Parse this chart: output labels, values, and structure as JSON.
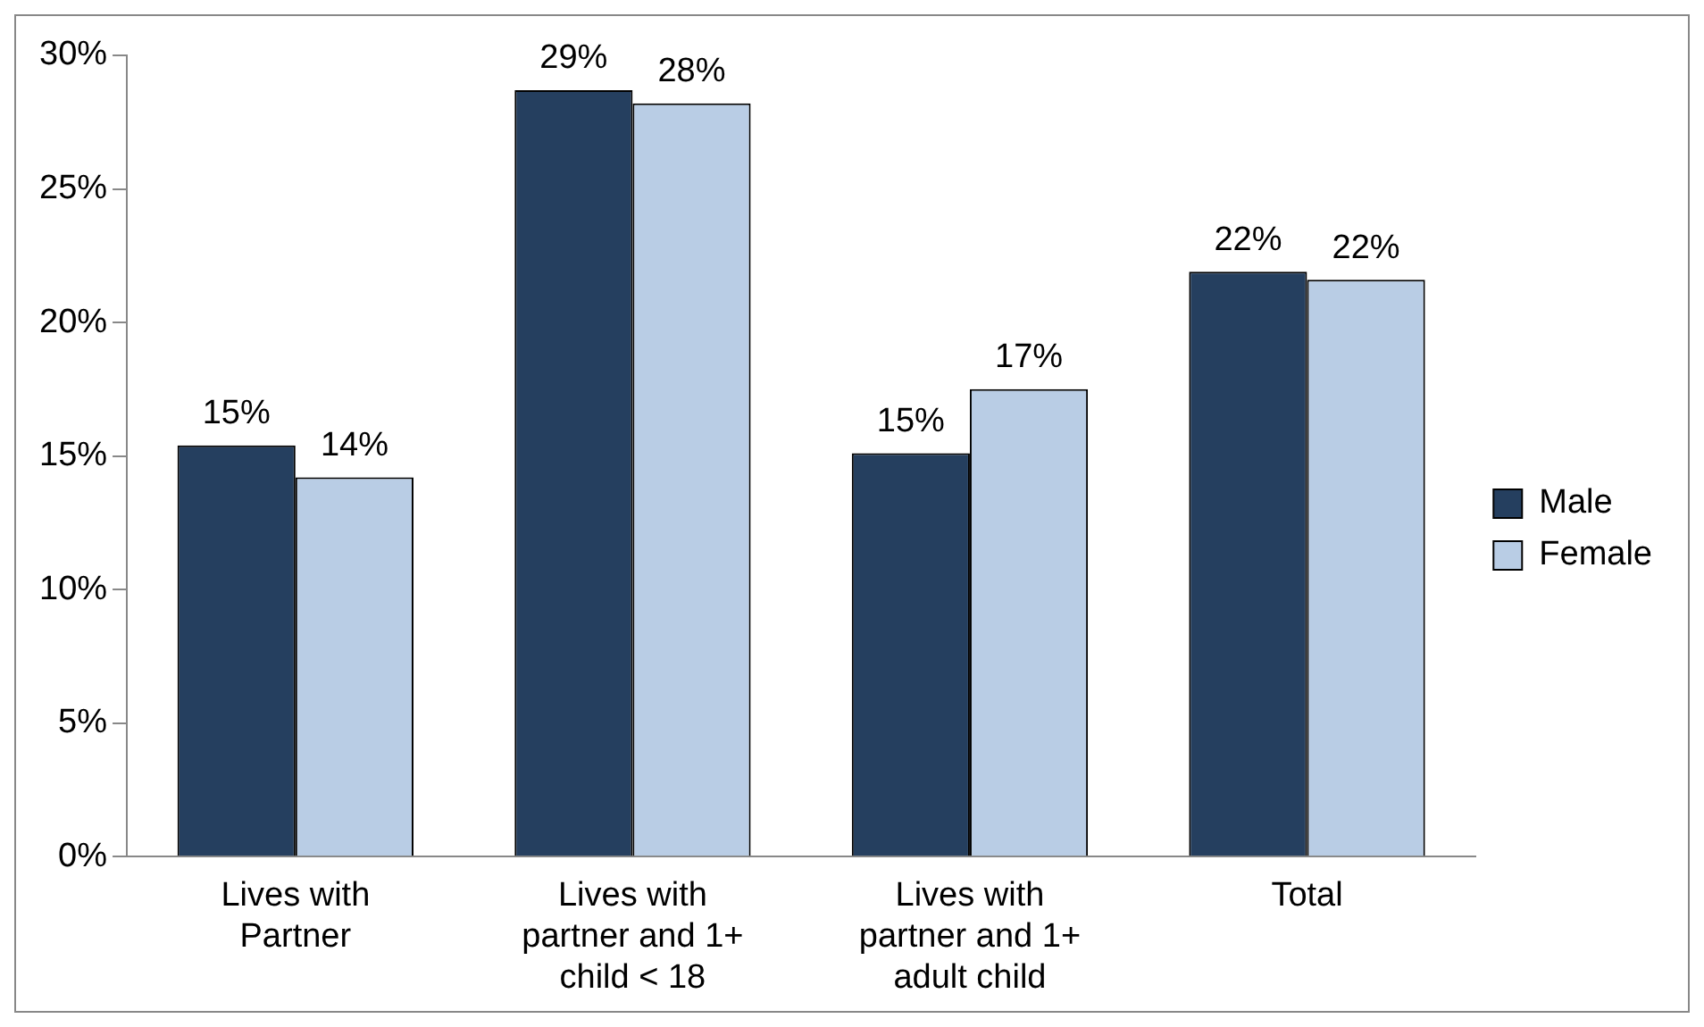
{
  "chart_data": {
    "type": "bar",
    "categories": [
      "Lives with Partner",
      "Lives with partner and 1+ child < 18",
      "Lives with partner and 1+ adult child",
      "Total"
    ],
    "series": [
      {
        "name": "Male",
        "color": "#253f5f",
        "values": [
          15.4,
          28.7,
          15.1,
          21.9
        ],
        "value_labels": [
          "15%",
          "29%",
          "15%",
          "22%"
        ]
      },
      {
        "name": "Female",
        "color": "#b9cde5",
        "values": [
          14.2,
          28.2,
          17.5,
          21.6
        ],
        "value_labels": [
          "14%",
          "28%",
          "17%",
          "22%"
        ]
      }
    ],
    "ylim": [
      0,
      30
    ],
    "yticks": [
      {
        "value": 0,
        "label": "0%"
      },
      {
        "value": 5,
        "label": "5%"
      },
      {
        "value": 10,
        "label": "10%"
      },
      {
        "value": 15,
        "label": "15%"
      },
      {
        "value": 20,
        "label": "20%"
      },
      {
        "value": 25,
        "label": "25%"
      },
      {
        "value": 30,
        "label": "30%"
      }
    ],
    "grid": false,
    "legend": "right"
  }
}
